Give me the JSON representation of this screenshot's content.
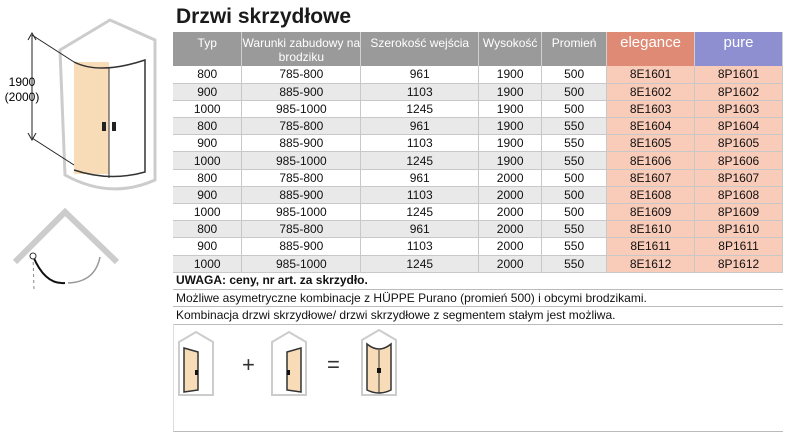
{
  "title": "Drzwi skrzydłowe",
  "figure": {
    "height_label": "1900",
    "height_label_alt": "(2000)"
  },
  "table": {
    "headers": [
      "Typ",
      "Warunki zabudowy na brodziku",
      "Szerokość wejścia",
      "Wysokość",
      "Promień",
      "elegance",
      "pure"
    ],
    "rows": [
      [
        "800",
        "785-800",
        "961",
        "1900",
        "500",
        "8E1601",
        "8P1601"
      ],
      [
        "900",
        "885-900",
        "1103",
        "1900",
        "500",
        "8E1602",
        "8P1602"
      ],
      [
        "1000",
        "985-1000",
        "1245",
        "1900",
        "500",
        "8E1603",
        "8P1603"
      ],
      [
        "800",
        "785-800",
        "961",
        "1900",
        "550",
        "8E1604",
        "8P1604"
      ],
      [
        "900",
        "885-900",
        "1103",
        "1900",
        "550",
        "8E1605",
        "8P1605"
      ],
      [
        "1000",
        "985-1000",
        "1245",
        "1900",
        "550",
        "8E1606",
        "8P1606"
      ],
      [
        "800",
        "785-800",
        "961",
        "2000",
        "500",
        "8E1607",
        "8P1607"
      ],
      [
        "900",
        "885-900",
        "1103",
        "2000",
        "500",
        "8E1608",
        "8P1608"
      ],
      [
        "1000",
        "985-1000",
        "1245",
        "2000",
        "500",
        "8E1609",
        "8P1609"
      ],
      [
        "800",
        "785-800",
        "961",
        "2000",
        "550",
        "8E1610",
        "8P1610"
      ],
      [
        "900",
        "885-900",
        "1103",
        "2000",
        "550",
        "8E1611",
        "8P1611"
      ],
      [
        "1000",
        "985-1000",
        "1245",
        "2000",
        "550",
        "8E1612",
        "8P1612"
      ]
    ]
  },
  "notes": [
    "UWAGA: ceny, nr art. za skrzydło.",
    "Możliwe asymetryczne kombinacje z HÜPPE Purano (promień 500) i obcymi brodzikami.",
    "Kombinacja drzwi skrzydłowe/ drzwi skrzydłowe z segmentem stałym jest możliwa."
  ],
  "combo": {
    "plus": "+",
    "equals": "="
  },
  "colors": {
    "header": "#9a9a9a",
    "elegance": "#df8a74",
    "pure": "#8e8fd0",
    "code_cell": "#f9cbb9",
    "glass": "#f8dcb8"
  }
}
